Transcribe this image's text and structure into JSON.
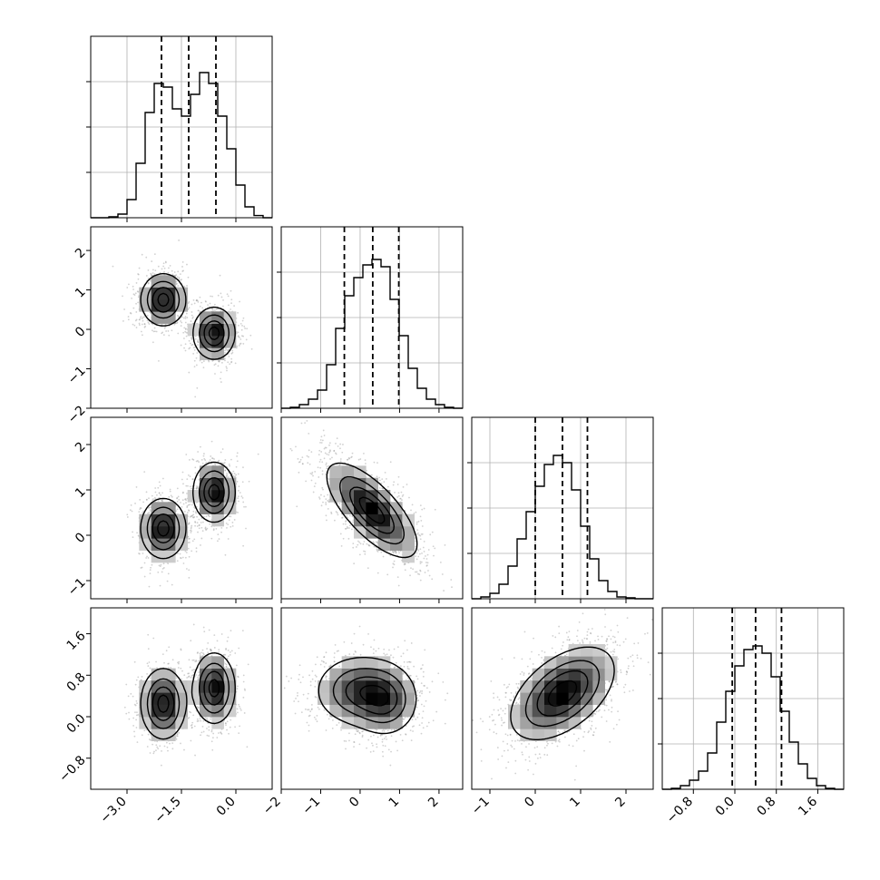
{
  "chart_data": {
    "type": "corner",
    "grid": true,
    "params": [
      {
        "index": 0,
        "range": [
          -4.0,
          1.0
        ],
        "ticks": [
          -3.0,
          -1.5,
          0.0
        ],
        "tick_labels": [
          "−3.0",
          "−1.5",
          "0.0"
        ],
        "quantiles": [
          -2.05,
          -1.3,
          -0.55
        ],
        "hist": [
          0.0,
          0.0,
          0.005,
          0.02,
          0.1,
          0.3,
          0.58,
          0.74,
          0.72,
          0.6,
          0.56,
          0.68,
          0.8,
          0.74,
          0.56,
          0.38,
          0.18,
          0.06,
          0.012,
          0.0
        ]
      },
      {
        "index": 1,
        "range": [
          -2.0,
          2.6
        ],
        "ticks": [
          -2,
          -1,
          0,
          1,
          2
        ],
        "tick_labels": [
          "−2",
          "−1",
          "0",
          "1",
          "2"
        ],
        "quantiles": [
          -0.4,
          0.32,
          0.98
        ],
        "hist": [
          0.0,
          0.005,
          0.02,
          0.05,
          0.1,
          0.24,
          0.44,
          0.62,
          0.72,
          0.79,
          0.82,
          0.78,
          0.6,
          0.4,
          0.22,
          0.11,
          0.05,
          0.02,
          0.005,
          0.0
        ]
      },
      {
        "index": 2,
        "range": [
          -1.4,
          2.6
        ],
        "ticks": [
          -1,
          0,
          1,
          2
        ],
        "tick_labels": [
          "−1",
          "0",
          "1",
          "2"
        ],
        "quantiles": [
          0.0,
          0.6,
          1.15
        ],
        "hist": [
          0.0,
          0.01,
          0.03,
          0.08,
          0.18,
          0.33,
          0.48,
          0.62,
          0.74,
          0.79,
          0.75,
          0.6,
          0.4,
          0.22,
          0.1,
          0.04,
          0.01,
          0.005,
          0.0,
          0.0
        ]
      },
      {
        "index": 3,
        "range": [
          -1.4,
          2.1
        ],
        "ticks": [
          -0.8,
          0.0,
          0.8,
          1.6
        ],
        "tick_labels": [
          "−0.8",
          "0.0",
          "0.8",
          "1.6"
        ],
        "quantiles": [
          -0.05,
          0.4,
          0.9
        ],
        "hist": [
          0.0,
          0.005,
          0.02,
          0.05,
          0.1,
          0.2,
          0.37,
          0.54,
          0.68,
          0.77,
          0.79,
          0.75,
          0.62,
          0.43,
          0.26,
          0.14,
          0.06,
          0.02,
          0.005,
          0.0
        ]
      }
    ],
    "pairs": [
      {
        "row": 1,
        "col": 0,
        "components": [
          {
            "mx": -2.0,
            "my": 0.75,
            "sx": 0.3,
            "sy": 0.32,
            "rho": 0.0,
            "w": 0.5
          },
          {
            "mx": -0.6,
            "my": -0.1,
            "sx": 0.28,
            "sy": 0.32,
            "rho": 0.0,
            "w": 0.5
          }
        ]
      },
      {
        "row": 2,
        "col": 0,
        "components": [
          {
            "mx": -2.0,
            "my": 0.15,
            "sx": 0.3,
            "sy": 0.32,
            "rho": 0.0,
            "w": 0.5
          },
          {
            "mx": -0.6,
            "my": 0.95,
            "sx": 0.28,
            "sy": 0.32,
            "rho": 0.0,
            "w": 0.5
          }
        ]
      },
      {
        "row": 2,
        "col": 1,
        "components": [
          {
            "mx": 0.3,
            "my": 0.55,
            "sx": 0.55,
            "sy": 0.5,
            "rho": -0.72,
            "w": 1.0
          }
        ]
      },
      {
        "row": 3,
        "col": 0,
        "components": [
          {
            "mx": -2.0,
            "my": 0.25,
            "sx": 0.3,
            "sy": 0.33,
            "rho": 0.0,
            "w": 0.5
          },
          {
            "mx": -0.6,
            "my": 0.55,
            "sx": 0.28,
            "sy": 0.33,
            "rho": 0.0,
            "w": 0.5
          }
        ]
      },
      {
        "row": 3,
        "col": 1,
        "components": [
          {
            "mx": 0.0,
            "my": 0.5,
            "sx": 0.55,
            "sy": 0.33,
            "rho": 0.0,
            "w": 0.55
          },
          {
            "mx": 0.65,
            "my": 0.3,
            "sx": 0.4,
            "sy": 0.33,
            "rho": 0.0,
            "w": 0.45
          }
        ]
      },
      {
        "row": 3,
        "col": 2,
        "components": [
          {
            "mx": 0.6,
            "my": 0.45,
            "sx": 0.55,
            "sy": 0.43,
            "rho": 0.5,
            "w": 1.0
          }
        ]
      }
    ],
    "contour_levels": [
      0.12,
      0.35,
      0.62,
      0.88
    ],
    "colors": {
      "line": "#000000",
      "grid": "#b0b0b0",
      "point": "#9a9a9a",
      "density_dark": "#000000",
      "density_light": "#ffffff"
    }
  }
}
